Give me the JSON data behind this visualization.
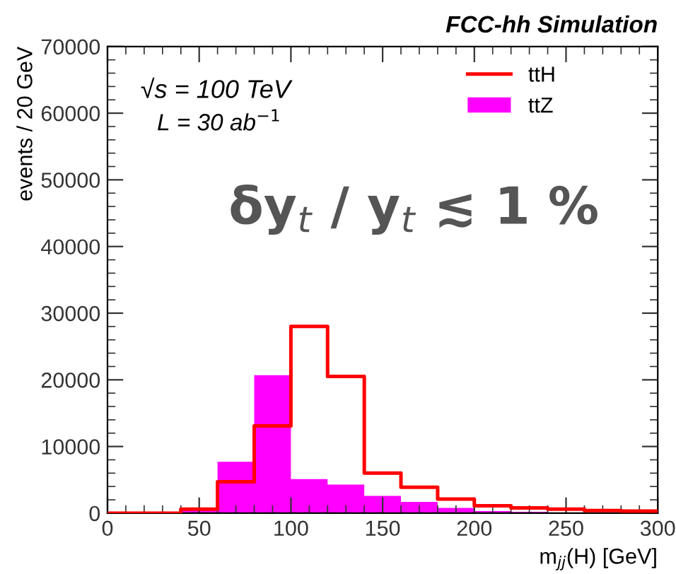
{
  "chart_data": {
    "type": "histogram",
    "title": "FCC-hh Simulation",
    "ylabel": "events / 20 GeV",
    "xlabel": "m$_{jj}$(H) [GeV]",
    "annotations": [
      "√s = 100 TeV",
      "L = 30 ab$^{−1}$",
      "δy$_{t}$ / y$_{t}$ ≲ 1 %"
    ],
    "bins": [
      0,
      20,
      40,
      60,
      80,
      100,
      120,
      140,
      160,
      180,
      200,
      220,
      240,
      260,
      280,
      300
    ],
    "series": [
      {
        "name": "ttH",
        "type": "step",
        "color": "#ff0000",
        "x": [
          0,
          20,
          40,
          60,
          80,
          100,
          120,
          140,
          160,
          180,
          200,
          220,
          240,
          260,
          280,
          300
        ],
        "values": [
          0,
          0,
          600,
          4700,
          13100,
          28000,
          20500,
          6000,
          3900,
          2100,
          1100,
          800,
          600,
          400,
          300,
          300
        ]
      },
      {
        "name": "ttZ",
        "color": "#ff00ff",
        "values": [
          0,
          0,
          600,
          7700,
          20700,
          5100,
          4300,
          2600,
          1700,
          800,
          300,
          200,
          100,
          100,
          100
        ]
      }
    ],
    "xlim": [
      0,
      300
    ],
    "xticks": [
      0,
      50,
      100,
      150,
      200,
      250,
      300
    ],
    "ylim": [
      0,
      70000
    ],
    "yticks": [
      0,
      10000,
      20000,
      30000,
      40000,
      50000,
      60000,
      70000
    ],
    "legend": "top right",
    "grid": false
  }
}
